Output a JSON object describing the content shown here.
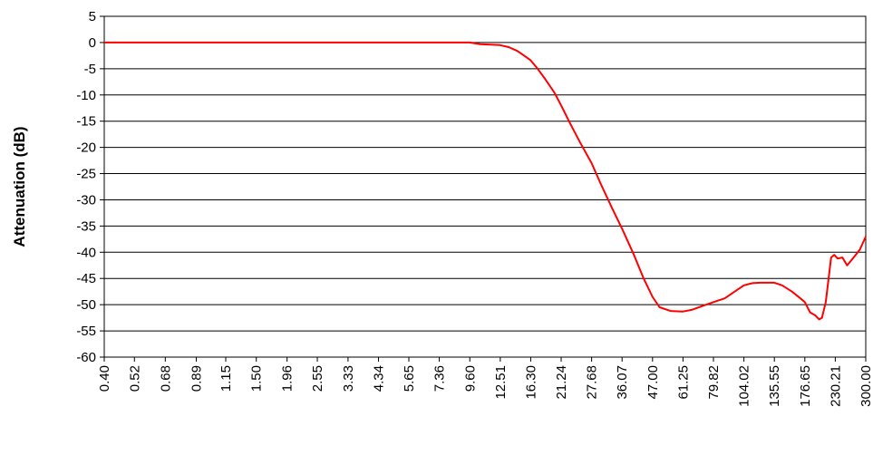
{
  "chart_data": {
    "type": "line",
    "ylabel": "Attenuation (dB)",
    "xlabel": "",
    "title": "",
    "ylim": [
      -60,
      5
    ],
    "yticks": [
      5,
      0,
      -5,
      -10,
      -15,
      -20,
      -25,
      -30,
      -35,
      -40,
      -45,
      -50,
      -55,
      -60
    ],
    "x_scale": "log",
    "xlim": [
      0.4,
      300
    ],
    "x_tick_labels": [
      "0.40",
      "0.52",
      "0.68",
      "0.89",
      "1.15",
      "1.50",
      "1.96",
      "2.55",
      "3.33",
      "4.34",
      "5.65",
      "7.36",
      "9.60",
      "12.51",
      "16.30",
      "21.24",
      "27.68",
      "36.07",
      "47.00",
      "61.25",
      "79.82",
      "104.02",
      "135.55",
      "176.65",
      "230.21",
      "300.00"
    ],
    "grid": "horizontal",
    "legend": "none",
    "series": [
      {
        "color": "#ff0000",
        "x": [
          0.4,
          1.0,
          5.0,
          9.6,
          10.5,
          11.5,
          12.51,
          13.5,
          14.5,
          15.3,
          16.3,
          17.3,
          18.5,
          20.0,
          21.24,
          23.0,
          25.0,
          27.68,
          30.0,
          33.0,
          36.07,
          40.0,
          43.5,
          47.0,
          50.0,
          55.0,
          61.25,
          66.0,
          72.0,
          79.82,
          88.0,
          96.0,
          104.02,
          112.0,
          120.0,
          128.0,
          135.55,
          145.0,
          158.0,
          170.0,
          176.65,
          185.0,
          193.0,
          200.0,
          205.0,
          212.0,
          222.0,
          228.0,
          235.0,
          245.0,
          255.0,
          270.0,
          285.0,
          300.0
        ],
        "y": [
          0,
          0,
          0,
          0,
          -0.3,
          -0.4,
          -0.5,
          -0.9,
          -1.6,
          -2.4,
          -3.4,
          -5.0,
          -7.0,
          -9.5,
          -12.0,
          -15.5,
          -19.0,
          -23.0,
          -27.0,
          -31.5,
          -35.5,
          -40.5,
          -45.0,
          -48.5,
          -50.5,
          -51.2,
          -51.3,
          -51.0,
          -50.3,
          -49.5,
          -48.8,
          -47.5,
          -46.3,
          -45.9,
          -45.8,
          -45.8,
          -45.8,
          -46.3,
          -47.5,
          -48.8,
          -49.5,
          -51.5,
          -52.0,
          -52.8,
          -52.5,
          -49.5,
          -41.0,
          -40.5,
          -41.2,
          -41.0,
          -42.5,
          -41.0,
          -39.5,
          -37.0
        ]
      }
    ]
  }
}
